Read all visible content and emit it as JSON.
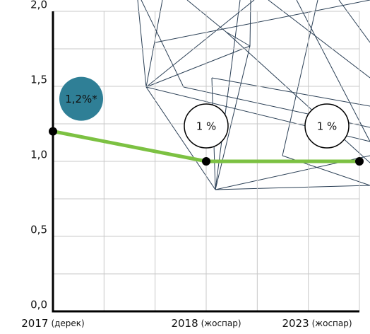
{
  "chart_data": {
    "type": "line",
    "categories": [
      "2017",
      "2018",
      "2023"
    ],
    "category_notes": [
      "(дерек)",
      "(жоспар)",
      "(жоспар)"
    ],
    "series": [
      {
        "color": "#7cc142",
        "values": [
          1.2,
          1.0,
          1.0
        ],
        "value_labels": [
          "1,2%*",
          "1 %",
          "1 %"
        ],
        "label_colors": [
          "#2f7f96",
          "#ffffff",
          "#ffffff"
        ]
      }
    ],
    "ylim": [
      0,
      2
    ],
    "yticks": [
      {
        "value": 0,
        "label": "0,0"
      },
      {
        "value": 0.5,
        "label": "0,5"
      },
      {
        "value": 1,
        "label": "1,0"
      },
      {
        "value": 1.5,
        "label": "1,5"
      },
      {
        "value": 2,
        "label": "2,0"
      }
    ],
    "minor_yticks": [
      0.25,
      0.75,
      1.25,
      1.75
    ],
    "grid": true
  }
}
